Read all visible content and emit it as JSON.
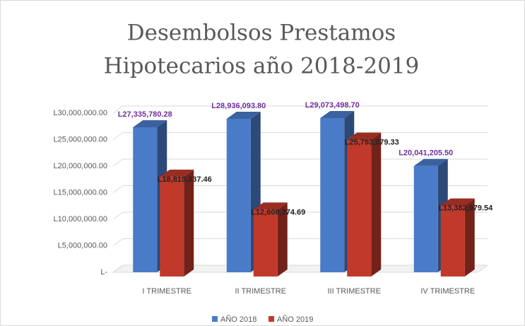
{
  "chart_data": {
    "type": "bar3d",
    "title": "Desembolsos Prestamos",
    "subtitle": "Hipotecarios año 2018-2019",
    "categories": [
      "I TRIMESTRE",
      "II TRIMESTRE",
      "III TRIMESTRE",
      "IV TRIMESTRE"
    ],
    "series": [
      {
        "name": "AÑO 2018",
        "color": "#4a7bc8",
        "label_color": "#7030a0",
        "values": [
          27335780.28,
          28936093.8,
          29073498.7,
          20041205.5
        ],
        "value_labels": [
          "L27,335,780.28",
          "L28,936,093.80",
          "L29,073,498.70",
          "L20,041,205.50"
        ]
      },
      {
        "name": "AÑO 2019",
        "color": "#c0392b",
        "label_color": "#222222",
        "values": [
          18819337.46,
          12608374.69,
          25793079.33,
          13382979.54
        ],
        "value_labels": [
          "L18,819,337.46",
          "L12,608,374.69",
          "L25,793,079.33",
          "L13,382,979.54"
        ]
      }
    ],
    "ylim": [
      0,
      30000000
    ],
    "yticks": [
      {
        "value": 0,
        "label": "L-"
      },
      {
        "value": 5000000,
        "label": "L5,000,000.00"
      },
      {
        "value": 10000000,
        "label": "L10,000,000.00"
      },
      {
        "value": 15000000,
        "label": "L15,000,000.00"
      },
      {
        "value": 20000000,
        "label": "L20,000,000.00"
      },
      {
        "value": 25000000,
        "label": "L25,000,000.00"
      },
      {
        "value": 30000000,
        "label": "L30,000,000.00"
      }
    ],
    "grid": true
  }
}
